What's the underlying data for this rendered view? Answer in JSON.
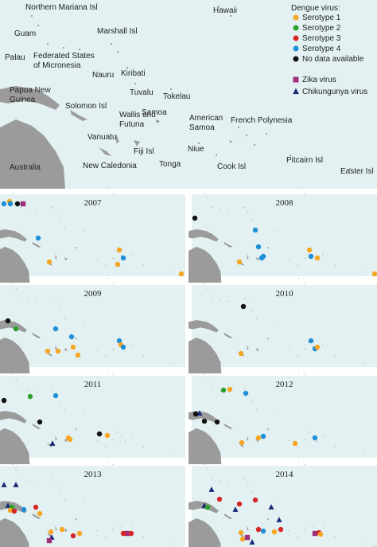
{
  "map": {
    "labels": [
      [
        "Northern Mariana Isl"
      ],
      [
        "Hawaii"
      ],
      [
        "Guam"
      ],
      [
        "Marshall Isl"
      ],
      [
        "Palau"
      ],
      [
        "Federated States",
        "of Micronesia"
      ],
      [
        "Nauru"
      ],
      [
        "Kiribati"
      ],
      [
        "Papua New",
        "Guinea"
      ],
      [
        "Tuvalu"
      ],
      [
        "Tokelau"
      ],
      [
        "Solomon Isl"
      ],
      [
        "Wallis and",
        "Futuna"
      ],
      [
        "Samoa"
      ],
      [
        "American",
        "Samoa"
      ],
      [
        "French Polynesia"
      ],
      [
        "Vanuatu"
      ],
      [
        "Fiji Isl"
      ],
      [
        "Niue"
      ],
      [
        "New Caledonia"
      ],
      [
        "Tonga"
      ],
      [
        "Cook Isl"
      ],
      [
        "Pitcairn Isl"
      ],
      [
        "Australia"
      ],
      [
        "Easter Isl"
      ]
    ],
    "legend": {
      "title": "Dengue virus:",
      "items": [
        {
          "name": "Serotype 1",
          "color": "#f5a623",
          "shape": "circle"
        },
        {
          "name": "Serotype 2",
          "color": "#2ca02c",
          "shape": "circle"
        },
        {
          "name": "Serotype 3",
          "color": "#d62728",
          "shape": "circle"
        },
        {
          "name": "Serotype 4",
          "color": "#1f8fd6",
          "shape": "circle"
        },
        {
          "name": "No data available",
          "color": "#111111",
          "shape": "circle"
        },
        {
          "name": "Zika virus",
          "color": "#a0307a",
          "shape": "square"
        },
        {
          "name": "Chikungunya virus",
          "color": "#1a2a7a",
          "shape": "triangle"
        }
      ]
    }
  },
  "panels": [
    {
      "year": "2007"
    },
    {
      "year": "2008"
    },
    {
      "year": "2009"
    },
    {
      "year": "2010"
    },
    {
      "year": "2011"
    },
    {
      "year": "2012"
    },
    {
      "year": "2013"
    },
    {
      "year": "2014"
    }
  ]
}
